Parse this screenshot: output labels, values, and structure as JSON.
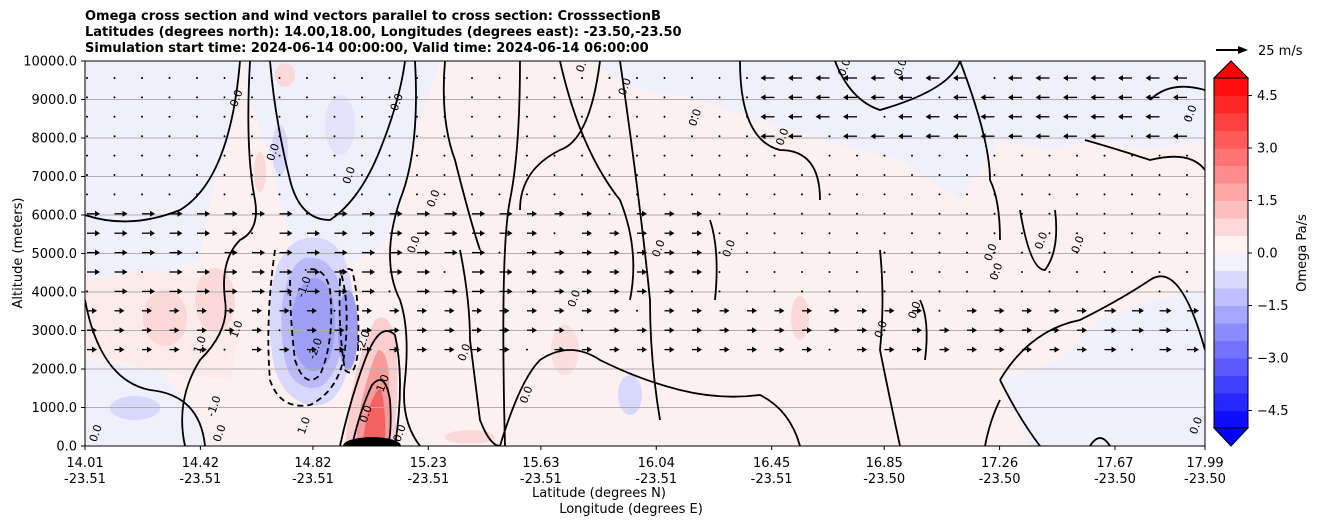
{
  "chart_data": {
    "type": "heatmap",
    "title_lines": [
      "Omega cross section and wind vectors parallel to cross section: CrosssectionB",
      "Latitudes (degrees north): 14.00,18.00, Longitudes (degrees east): -23.50,-23.50",
      "Simulation start time: 2024-06-14 00:00:00, Valid time: 2024-06-14 06:00:00"
    ],
    "xlabel_lines": [
      "Latitude (degrees N)",
      "Longitude (degrees E)"
    ],
    "ylabel": "Altitude (meters)",
    "x_ticks": [
      {
        "lat": "14.01",
        "lon": "-23.51",
        "x": 14.01
      },
      {
        "lat": "14.42",
        "lon": "-23.51",
        "x": 14.42
      },
      {
        "lat": "14.82",
        "lon": "-23.51",
        "x": 14.82
      },
      {
        "lat": "15.23",
        "lon": "-23.51",
        "x": 15.23
      },
      {
        "lat": "15.63",
        "lon": "-23.51",
        "x": 15.63
      },
      {
        "lat": "16.04",
        "lon": "-23.51",
        "x": 16.04
      },
      {
        "lat": "16.45",
        "lon": "-23.51",
        "x": 16.45
      },
      {
        "lat": "16.85",
        "lon": "-23.50",
        "x": 16.85
      },
      {
        "lat": "17.26",
        "lon": "-23.50",
        "x": 17.26
      },
      {
        "lat": "17.67",
        "lon": "-23.50",
        "x": 17.67
      },
      {
        "lat": "17.99",
        "lon": "-23.50",
        "x": 17.99
      }
    ],
    "xlim": [
      14.01,
      17.99
    ],
    "y_ticks": [
      "0.0",
      "1000.0",
      "2000.0",
      "3000.0",
      "4000.0",
      "5000.0",
      "6000.0",
      "7000.0",
      "8000.0",
      "9000.0",
      "10000.0"
    ],
    "y_tick_values": [
      0,
      1000,
      2000,
      3000,
      4000,
      5000,
      6000,
      7000,
      8000,
      9000,
      10000
    ],
    "ylim": [
      0,
      10000
    ],
    "grid": "horizontal",
    "colorbar": {
      "label": "Omega Pa/s",
      "ticks": [
        "4.5",
        "3.0",
        "1.5",
        "0.0",
        "−1.5",
        "−3.0",
        "−4.5"
      ],
      "tick_values": [
        4.5,
        3.0,
        1.5,
        0.0,
        -1.5,
        -3.0,
        -4.5
      ],
      "range": [
        -5.0,
        5.0
      ],
      "levels": 20,
      "colormap": "bwr",
      "extend": "both"
    },
    "quiver_key": {
      "label": "25 m/s",
      "value": 25
    },
    "contour_labels": [
      {
        "text": "0.0",
        "x": 14.06,
        "y": 300
      },
      {
        "text": "0.0",
        "x": 14.5,
        "y": 300
      },
      {
        "text": "0.0",
        "x": 14.56,
        "y": 9000
      },
      {
        "text": "0.0",
        "x": 14.69,
        "y": 7600
      },
      {
        "text": "1.0",
        "x": 14.43,
        "y": 2600
      },
      {
        "text": "1.0",
        "x": 14.56,
        "y": 3000
      },
      {
        "text": "-1.0",
        "x": 14.48,
        "y": 1000
      },
      {
        "text": "1.0",
        "x": 14.8,
        "y": 500
      },
      {
        "text": "-1.0",
        "x": 14.8,
        "y": 4100
      },
      {
        "text": "-2.0",
        "x": 14.84,
        "y": 2500
      },
      {
        "text": "-2.0",
        "x": 15.01,
        "y": 2700
      },
      {
        "text": "1.0",
        "x": 15.08,
        "y": 1600
      },
      {
        "text": "0.0",
        "x": 15.02,
        "y": 800
      },
      {
        "text": "0.0",
        "x": 15.14,
        "y": 300
      },
      {
        "text": "0.0",
        "x": 14.96,
        "y": 7000
      },
      {
        "text": "0.0",
        "x": 15.13,
        "y": 8900
      },
      {
        "text": "0.0",
        "x": 15.19,
        "y": 5200
      },
      {
        "text": "0.0",
        "x": 15.26,
        "y": 6400
      },
      {
        "text": "0.0",
        "x": 15.37,
        "y": 2400
      },
      {
        "text": "0.0",
        "x": 15.59,
        "y": 1300
      },
      {
        "text": "0.0",
        "x": 15.79,
        "y": 9900
      },
      {
        "text": "0.0",
        "x": 15.76,
        "y": 3800
      },
      {
        "text": "0.0",
        "x": 15.94,
        "y": 9300
      },
      {
        "text": "0.0",
        "x": 16.06,
        "y": 5100
      },
      {
        "text": "0.0",
        "x": 16.19,
        "y": 8500
      },
      {
        "text": "0.0",
        "x": 16.31,
        "y": 5100
      },
      {
        "text": "0.0",
        "x": 16.5,
        "y": 8000
      },
      {
        "text": "0.0",
        "x": 16.72,
        "y": 9800
      },
      {
        "text": "0.0",
        "x": 16.85,
        "y": 3000
      },
      {
        "text": "0.0",
        "x": 16.92,
        "y": 9800
      },
      {
        "text": "0.0",
        "x": 16.97,
        "y": 3500
      },
      {
        "text": "0.0",
        "x": 17.24,
        "y": 5000
      },
      {
        "text": "0.0",
        "x": 17.26,
        "y": 4500
      },
      {
        "text": "0.0",
        "x": 17.42,
        "y": 5300
      },
      {
        "text": "0.0",
        "x": 17.55,
        "y": 5200
      },
      {
        "text": "0.0",
        "x": 17.95,
        "y": 8600
      },
      {
        "text": "0.0",
        "x": 17.97,
        "y": 500
      }
    ]
  }
}
